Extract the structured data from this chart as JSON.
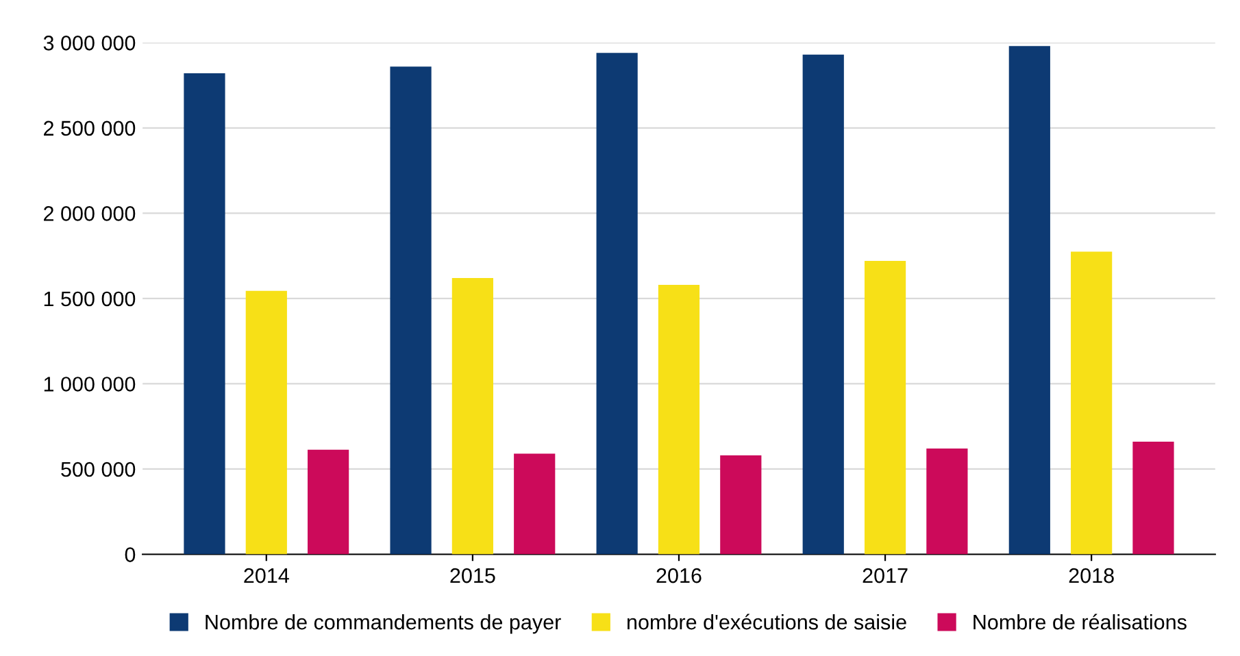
{
  "chart_data": {
    "type": "bar",
    "categories": [
      "2014",
      "2015",
      "2016",
      "2017",
      "2018"
    ],
    "series": [
      {
        "name": "Nombre de commandements de payer",
        "color": "#0d3a73",
        "values": [
          2820000,
          2860000,
          2940000,
          2930000,
          2980000
        ]
      },
      {
        "name": "nombre d'exécutions de saisie",
        "color": "#f7e017",
        "values": [
          1545000,
          1620000,
          1580000,
          1720000,
          1775000
        ]
      },
      {
        "name": "Nombre de réalisations",
        "color": "#cc0a5a",
        "values": [
          613000,
          590000,
          580000,
          620000,
          660000
        ]
      }
    ],
    "ylim": [
      0,
      3000000
    ],
    "yticks": [
      0,
      {
        "value": 500000,
        "label": "500 000"
      },
      {
        "value": 1000000,
        "label": "1 000 000"
      },
      {
        "value": 1500000,
        "label": "1 500 000"
      },
      {
        "value": 2000000,
        "label": "2 000 000"
      },
      {
        "value": 2500000,
        "label": "2 500 000"
      },
      {
        "value": 3000000,
        "label": "3 000 000"
      }
    ],
    "grid": "y",
    "legend": "bottom"
  }
}
